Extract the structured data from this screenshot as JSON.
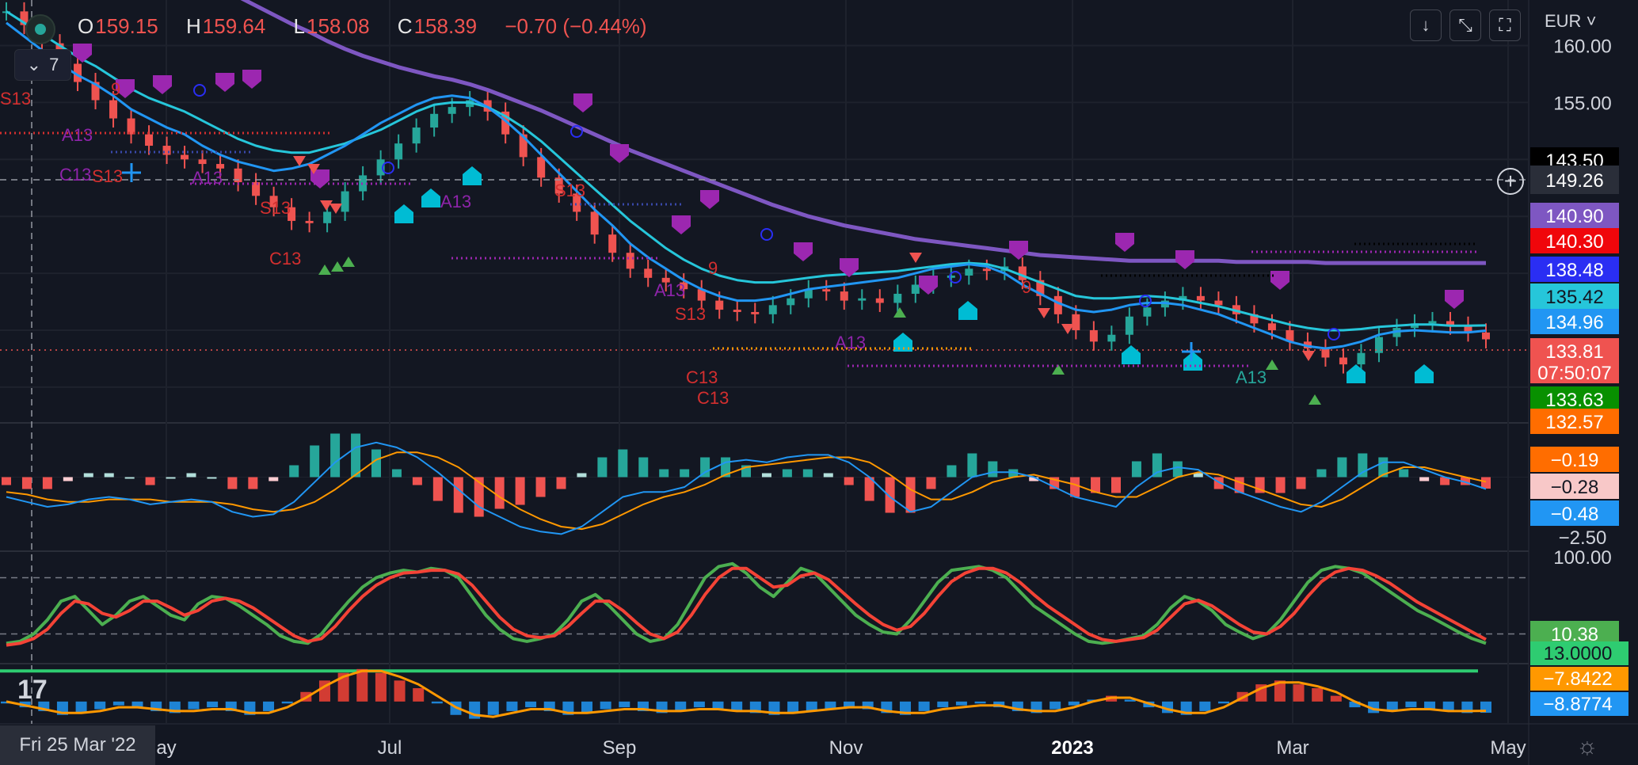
{
  "ohlc": {
    "o_label": "O",
    "o": "159.15",
    "h_label": "H",
    "h": "159.64",
    "l_label": "L",
    "l": "158.08",
    "c_label": "C",
    "c": "158.39",
    "change": "−0.70 (−0.44%)"
  },
  "legend_toggle": {
    "count": "7"
  },
  "currency": "EUR",
  "crosshair_date": "Fri 25 Mar '22",
  "crosshair_price": "149.26",
  "x_axis_labels": [
    "ay",
    "Jul",
    "Sep",
    "Nov",
    "2023",
    "Mar",
    "May"
  ],
  "colors": {
    "bg": "#131722",
    "up": "#26a69a",
    "down": "#ef5350",
    "ema_fast": "#2196f3",
    "ema_mid": "#26c6da",
    "ema_slow": "#7e57c2",
    "signal": "#ff9800",
    "stoch_k": "#4caf50",
    "stoch_d": "#f44336",
    "zero": "#2ecc71"
  },
  "chart_data": [
    {
      "type": "candlestick",
      "title": "",
      "y_ticks": [
        "160.00",
        "155.00"
      ],
      "price_labels": [
        {
          "value": "143.50",
          "color": "#000000"
        },
        {
          "value": "149.26",
          "color": "#2a2e39"
        },
        {
          "value": "140.90",
          "color": "#7e57c2"
        },
        {
          "value": "140.30",
          "color": "#f0060b"
        },
        {
          "value": "138.48",
          "color": "#2a2ef3"
        },
        {
          "value": "135.42",
          "color": "#26c6da"
        },
        {
          "value": "134.96",
          "color": "#2196f3"
        },
        {
          "value": "133.81",
          "color": "#ef5350"
        },
        {
          "value": "07:50:07",
          "color": "#ef5350"
        },
        {
          "value": "133.63",
          "color": "#089000"
        },
        {
          "value": "132.57",
          "color": "#ff6d00"
        }
      ],
      "close_series": [
        163,
        161.8,
        160.2,
        158.4,
        156.8,
        155.2,
        153.6,
        152.2,
        151.2,
        150.4,
        150.0,
        149.6,
        149.2,
        148.0,
        146.8,
        145.8,
        144.6,
        144.4,
        145.4,
        147.2,
        148.6,
        150.0,
        151.4,
        152.8,
        154.0,
        154.6,
        155.2,
        154.2,
        152.2,
        150.2,
        148.4,
        147.0,
        145.4,
        143.4,
        141.8,
        140.4,
        139.6,
        139.2,
        138.6,
        137.6,
        136.8,
        136.6,
        136.4,
        137.2,
        137.8,
        138.6,
        138.4,
        137.6,
        137.8,
        137.4,
        138.2,
        139.0,
        139.6,
        139.8,
        140.4,
        140.2,
        140.6,
        139.4,
        138.0,
        136.4,
        135.0,
        134.0,
        134.6,
        136.2,
        137.0,
        137.6,
        138.0,
        137.6,
        137.2,
        136.4,
        135.6,
        135.0,
        134.0,
        133.4,
        132.6,
        132.0,
        133.0,
        134.4,
        135.2,
        135.6,
        135.8,
        135.4,
        134.8,
        134.2
      ],
      "ema_fast": [
        162,
        160.8,
        159.6,
        158.4,
        157.4,
        156.6,
        155.6,
        154.4,
        153.6,
        152.8,
        152.2,
        151.2,
        150.4,
        149.8,
        149.4,
        149.0,
        149.2,
        149.6,
        150.4,
        151.2,
        152.2,
        153.2,
        154.0,
        154.8,
        155.4,
        155.6,
        155.4,
        154.6,
        153.4,
        152.0,
        150.4,
        148.8,
        147.2,
        145.6,
        144.2,
        142.6,
        141.4,
        140.4,
        139.4,
        138.6,
        138.0,
        137.6,
        137.6,
        137.8,
        138.2,
        138.6,
        138.8,
        139.0,
        139.2,
        139.4,
        139.6,
        140.0,
        140.4,
        140.6,
        140.8,
        140.6,
        140.0,
        139.0,
        138.2,
        137.4,
        136.8,
        136.6,
        136.8,
        137.2,
        137.4,
        137.4,
        137.2,
        136.8,
        136.4,
        135.8,
        135.2,
        134.6,
        134.0,
        133.6,
        133.4,
        133.6,
        134.0,
        134.6,
        134.9,
        135.0,
        134.9,
        134.8,
        134.8,
        134.96
      ],
      "ema_mid": [
        163,
        162.0,
        161.0,
        160.0,
        159.0,
        158.2,
        157.2,
        156.2,
        155.4,
        154.8,
        154.2,
        153.4,
        152.6,
        151.8,
        151.2,
        150.8,
        150.6,
        150.6,
        151.0,
        151.4,
        152.0,
        152.6,
        153.4,
        154.2,
        154.8,
        155.0,
        155.0,
        154.6,
        153.8,
        152.8,
        151.6,
        150.2,
        148.8,
        147.4,
        146.0,
        144.6,
        143.4,
        142.2,
        141.2,
        140.4,
        139.8,
        139.4,
        139.2,
        139.2,
        139.4,
        139.6,
        139.8,
        139.9,
        140.0,
        140.1,
        140.2,
        140.4,
        140.6,
        140.8,
        140.9,
        140.8,
        140.4,
        139.8,
        139.2,
        138.6,
        138.0,
        137.8,
        137.8,
        137.9,
        138.0,
        137.9,
        137.7,
        137.4,
        137.1,
        136.7,
        136.3,
        135.9,
        135.5,
        135.2,
        135.0,
        135.0,
        135.1,
        135.3,
        135.4,
        135.5,
        135.5,
        135.4,
        135.4,
        135.42
      ],
      "ema_slow": [
        172,
        171.6,
        171.2,
        170.8,
        170.3,
        169.8,
        169.2,
        168.6,
        168.0,
        167.3,
        166.6,
        165.9,
        165.1,
        164.3,
        163.5,
        162.7,
        161.9,
        161.2,
        160.4,
        159.7,
        159.1,
        158.6,
        158.1,
        157.7,
        157.3,
        157.0,
        156.6,
        156.1,
        155.5,
        154.9,
        154.3,
        153.6,
        152.9,
        152.2,
        151.5,
        150.8,
        150.2,
        149.6,
        149.0,
        148.4,
        147.8,
        147.2,
        146.6,
        146.0,
        145.5,
        145.0,
        144.6,
        144.2,
        143.9,
        143.6,
        143.3,
        143.0,
        142.8,
        142.6,
        142.4,
        142.2,
        142.0,
        141.8,
        141.6,
        141.5,
        141.4,
        141.3,
        141.2,
        141.1,
        141.1,
        141.1,
        141.1,
        141.1,
        141.1,
        141.0,
        141.0,
        141.0,
        141.0,
        141.0,
        140.9,
        140.9,
        140.9,
        140.9,
        140.9,
        140.9,
        140.9,
        140.9,
        140.9,
        140.9
      ],
      "markers": [
        "S13",
        "A13",
        "C13",
        "9",
        "S13",
        "A13",
        "C13",
        "9",
        "A13",
        "C13",
        "C13",
        "C13",
        "A13",
        "9",
        "A13"
      ]
    },
    {
      "type": "macd",
      "y_ticks": [
        "−2.50"
      ],
      "labels": [
        {
          "value": "−0.19",
          "color": "#ff6d00"
        },
        {
          "value": "−0.28",
          "color": "#f8c8c8"
        },
        {
          "value": "−0.48",
          "color": "#2196f3"
        }
      ],
      "macd": [
        -0.8,
        -1.0,
        -1.2,
        -1.1,
        -0.9,
        -0.8,
        -0.9,
        -1.1,
        -1.0,
        -0.9,
        -1.0,
        -1.4,
        -1.6,
        -1.5,
        -1.0,
        -0.2,
        0.6,
        1.2,
        1.4,
        1.2,
        0.8,
        0.2,
        -0.5,
        -1.2,
        -1.6,
        -2.0,
        -2.2,
        -2.3,
        -2.0,
        -1.4,
        -0.8,
        -0.6,
        -0.6,
        -0.4,
        0.2,
        0.6,
        0.7,
        0.6,
        0.8,
        0.9,
        0.9,
        0.6,
        0.0,
        -0.8,
        -1.4,
        -1.2,
        -0.6,
        0.0,
        0.2,
        0.2,
        0.0,
        -0.4,
        -0.8,
        -1.0,
        -1.2,
        -0.4,
        0.2,
        0.4,
        0.3,
        -0.2,
        -0.6,
        -0.9,
        -1.2,
        -1.4,
        -1.0,
        -0.4,
        0.2,
        0.6,
        0.6,
        0.3,
        0.0,
        -0.2,
        -0.48
      ],
      "signal": [
        -0.6,
        -0.7,
        -0.9,
        -1.0,
        -1.0,
        -0.9,
        -0.9,
        -0.9,
        -1.0,
        -1.0,
        -1.0,
        -1.1,
        -1.3,
        -1.4,
        -1.3,
        -1.0,
        -0.5,
        0.1,
        0.7,
        1.0,
        1.0,
        0.8,
        0.4,
        -0.2,
        -0.8,
        -1.3,
        -1.7,
        -2.0,
        -2.1,
        -1.9,
        -1.5,
        -1.1,
        -0.8,
        -0.6,
        -0.3,
        0.1,
        0.4,
        0.5,
        0.6,
        0.7,
        0.8,
        0.8,
        0.6,
        0.1,
        -0.5,
        -0.9,
        -0.9,
        -0.6,
        -0.2,
        0.0,
        0.1,
        -0.1,
        -0.3,
        -0.6,
        -0.8,
        -0.8,
        -0.4,
        0.0,
        0.2,
        0.1,
        -0.2,
        -0.5,
        -0.8,
        -1.1,
        -1.2,
        -0.9,
        -0.4,
        0.1,
        0.4,
        0.4,
        0.2,
        0.0,
        -0.19
      ]
    },
    {
      "type": "stochastic",
      "y_ticks": [
        "100.00"
      ],
      "labels": [
        {
          "value": "10.38",
          "color": "#4caf50"
        }
      ],
      "k": [
        10,
        12,
        20,
        35,
        55,
        60,
        45,
        30,
        40,
        55,
        60,
        50,
        40,
        35,
        52,
        60,
        58,
        50,
        40,
        30,
        18,
        12,
        10,
        20,
        38,
        55,
        70,
        80,
        85,
        88,
        86,
        90,
        88,
        80,
        60,
        40,
        25,
        15,
        12,
        15,
        20,
        35,
        55,
        62,
        50,
        35,
        20,
        12,
        15,
        30,
        55,
        80,
        92,
        95,
        85,
        70,
        60,
        75,
        90,
        85,
        70,
        55,
        40,
        30,
        22,
        20,
        35,
        55,
        75,
        88,
        90,
        92,
        88,
        80,
        65,
        50,
        40,
        30,
        20,
        12,
        10,
        12,
        15,
        18,
        30,
        48,
        60,
        55,
        45,
        30,
        22,
        15,
        20,
        35,
        55,
        75,
        88,
        92,
        90,
        85,
        75,
        65,
        55,
        45,
        38,
        30,
        22,
        15,
        10
      ],
      "d": [
        8,
        10,
        15,
        25,
        42,
        55,
        52,
        42,
        38,
        45,
        55,
        55,
        48,
        40,
        45,
        55,
        58,
        55,
        48,
        38,
        28,
        18,
        12,
        15,
        28,
        45,
        60,
        72,
        80,
        85,
        86,
        88,
        88,
        84,
        72,
        55,
        38,
        25,
        18,
        16,
        18,
        28,
        42,
        55,
        55,
        45,
        32,
        20,
        15,
        22,
        40,
        62,
        80,
        90,
        90,
        80,
        70,
        72,
        82,
        85,
        78,
        65,
        52,
        40,
        30,
        24,
        28,
        42,
        60,
        76,
        85,
        90,
        90,
        85,
        75,
        62,
        50,
        40,
        30,
        20,
        14,
        12,
        14,
        16,
        24,
        38,
        52,
        56,
        50,
        40,
        30,
        22,
        20,
        28,
        42,
        60,
        76,
        86,
        90,
        88,
        82,
        74,
        64,
        54,
        46,
        38,
        30,
        22,
        14
      ]
    },
    {
      "type": "histogram_oscillator",
      "labels": [
        {
          "value": "13.0000",
          "color": "#2ecc71"
        },
        {
          "value": "−7.8422",
          "color": "#ff9800"
        },
        {
          "value": "−8.8774",
          "color": "#2196f3"
        }
      ],
      "values": [
        -4,
        -6,
        -8,
        -10,
        -9,
        -7,
        -5,
        -6,
        -8,
        -9,
        -7,
        -6,
        -8,
        -10,
        -8,
        -4,
        2,
        8,
        12,
        14,
        12,
        8,
        4,
        -4,
        -10,
        -12,
        -10,
        -8,
        -6,
        -8,
        -10,
        -9,
        -7,
        -6,
        -8,
        -9,
        -8,
        -6,
        -7,
        -8,
        -9,
        -10,
        -9,
        -8,
        -7,
        -6,
        -7,
        -9,
        -10,
        -8,
        -6,
        -5,
        -4,
        -6,
        -8,
        -9,
        -7,
        -5,
        -2,
        0,
        -2,
        -6,
        -9,
        -10,
        -8,
        -4,
        2,
        6,
        8,
        6,
        4,
        0,
        -6,
        -9,
        -8,
        -6,
        -7,
        -8,
        -9,
        -8.8774
      ],
      "signal": [
        -3,
        -5,
        -7,
        -9,
        -9,
        -8,
        -6,
        -6,
        -7,
        -8,
        -8,
        -7,
        -7,
        -9,
        -9,
        -6,
        -1,
        5,
        10,
        13,
        13,
        10,
        6,
        0,
        -6,
        -10,
        -11,
        -9,
        -7,
        -7,
        -9,
        -9,
        -8,
        -7,
        -7,
        -8,
        -8,
        -7,
        -7,
        -8,
        -8,
        -9,
        -9,
        -8,
        -7,
        -6,
        -6,
        -8,
        -9,
        -9,
        -7,
        -6,
        -5,
        -5,
        -7,
        -8,
        -8,
        -6,
        -3,
        -1,
        -1,
        -4,
        -7,
        -9,
        -9,
        -6,
        -1,
        4,
        7,
        7,
        5,
        2,
        -3,
        -7,
        -8,
        -7,
        -7,
        -8,
        -8,
        -7.8422
      ]
    }
  ]
}
